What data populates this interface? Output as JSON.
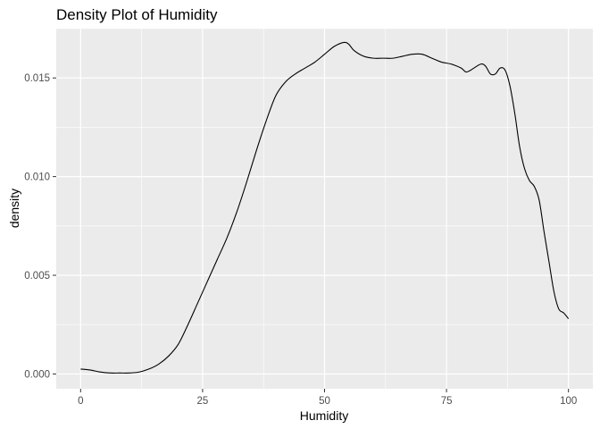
{
  "chart_data": {
    "type": "line",
    "title": "Density Plot of Humidity",
    "xlabel": "Humidity",
    "ylabel": "density",
    "xlim": [
      -5,
      105
    ],
    "ylim": [
      -0.00075,
      0.0175
    ],
    "x_ticks": [
      0,
      25,
      50,
      75,
      100
    ],
    "x_tick_labels": [
      "0",
      "25",
      "50",
      "75",
      "100"
    ],
    "y_ticks": [
      0,
      0.005,
      0.01,
      0.015
    ],
    "y_tick_labels": [
      "0.000",
      "0.005",
      "0.010",
      "0.015"
    ],
    "grid": true,
    "legend": "none",
    "colors": {
      "panel": "#ebebeb",
      "grid": "#ffffff",
      "line": "#000000"
    },
    "series": [
      {
        "x": [
          0,
          2,
          4,
          6,
          8,
          10,
          12,
          14,
          16,
          18,
          20,
          22,
          24,
          26,
          28,
          30,
          32,
          34,
          36,
          38,
          40,
          42,
          44,
          46,
          48,
          50,
          52,
          54,
          55,
          56,
          58,
          60,
          62,
          64,
          66,
          68,
          70,
          72,
          74,
          76,
          78,
          79,
          80,
          82,
          83,
          84,
          85,
          86,
          87,
          88,
          89,
          90,
          91,
          92,
          93,
          94,
          95,
          96,
          97,
          98,
          99,
          100
        ],
        "values": [
          0.00025,
          0.0002,
          0.0001,
          5e-05,
          5e-05,
          5e-05,
          0.0001,
          0.00025,
          0.0005,
          0.0009,
          0.0015,
          0.0025,
          0.0036,
          0.0047,
          0.0058,
          0.0069,
          0.0082,
          0.0097,
          0.0113,
          0.0128,
          0.0141,
          0.0148,
          0.0152,
          0.0155,
          0.0158,
          0.0162,
          0.0166,
          0.0168,
          0.0167,
          0.0164,
          0.0161,
          0.016,
          0.016,
          0.016,
          0.0161,
          0.0162,
          0.0162,
          0.016,
          0.0158,
          0.0157,
          0.0155,
          0.0153,
          0.0154,
          0.0157,
          0.0156,
          0.0152,
          0.0152,
          0.0155,
          0.0154,
          0.0146,
          0.0132,
          0.0115,
          0.0104,
          0.0098,
          0.0095,
          0.0088,
          0.0072,
          0.0057,
          0.0042,
          0.0033,
          0.0031,
          0.0028
        ]
      }
    ]
  }
}
